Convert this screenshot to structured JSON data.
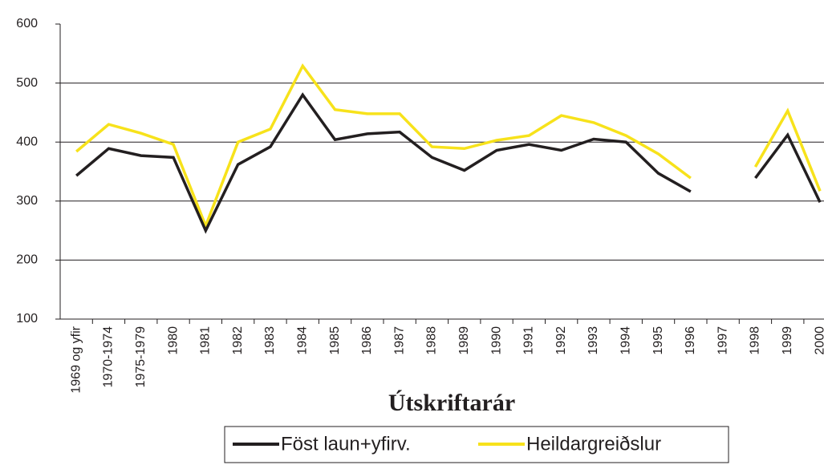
{
  "chart_data": {
    "type": "line",
    "x_label": "Útskriftarár",
    "categories": [
      "1969 og yfir",
      "1970-1974",
      "1975-1979",
      "1980",
      "1981",
      "1982",
      "1983",
      "1984",
      "1985",
      "1986",
      "1987",
      "1988",
      "1989",
      "1990",
      "1991",
      "1992",
      "1993",
      "1994",
      "1995",
      "1996",
      "1997",
      "1998",
      "1999",
      "2000"
    ],
    "series": [
      {
        "name": "Föst laun+yfirv.",
        "color": "#231f20",
        "values": [
          343,
          389,
          377,
          374,
          250,
          362,
          392,
          480,
          404,
          414,
          417,
          374,
          352,
          386,
          396,
          386,
          405,
          400,
          347,
          316,
          null,
          339,
          412,
          298
        ]
      },
      {
        "name": "Heildargreiðslur",
        "color": "#f7e21b",
        "values": [
          384,
          430,
          415,
          396,
          258,
          400,
          422,
          529,
          455,
          448,
          448,
          392,
          389,
          403,
          411,
          445,
          433,
          411,
          380,
          339,
          null,
          358,
          453,
          317
        ]
      }
    ],
    "ylim": [
      100,
      600
    ],
    "yticks": [
      100,
      200,
      300,
      400,
      500,
      600
    ],
    "grid": true,
    "legend": "bottom"
  }
}
